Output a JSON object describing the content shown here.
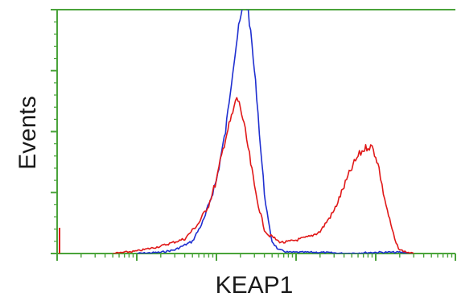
{
  "chart_data": {
    "type": "line",
    "title": "",
    "xlabel": "KEAP1",
    "ylabel": "Events",
    "x_scale": "log",
    "xlim": [
      1,
      100000
    ],
    "ylim": [
      0,
      200
    ],
    "grid": false,
    "legend": "none",
    "colors": {
      "axis": "#4aa33a",
      "blue_series": "#1f2fd0",
      "red_series": "#e01818"
    },
    "series": [
      {
        "color": "#1f2fd0",
        "x": [
          10,
          20,
          30,
          50,
          70,
          100,
          130,
          160,
          190,
          220,
          250,
          280,
          320,
          360,
          400,
          450,
          500,
          600,
          700,
          800,
          1000,
          1300,
          2000,
          4000,
          10000,
          20000,
          30000
        ],
        "y": [
          0,
          1,
          3,
          10,
          28,
          60,
          100,
          150,
          185,
          205,
          200,
          170,
          130,
          85,
          50,
          25,
          10,
          3,
          2,
          1,
          1,
          1,
          1,
          0,
          1,
          1,
          0
        ]
      },
      {
        "color": "#e01818",
        "x": [
          5,
          10,
          20,
          40,
          60,
          80,
          100,
          130,
          160,
          180,
          200,
          230,
          260,
          300,
          350,
          400,
          450,
          500,
          600,
          700,
          1000,
          1500,
          2000,
          3000,
          4000,
          5000,
          6000,
          7000,
          8000,
          9000,
          10000,
          11000,
          12000,
          14000,
          16000,
          18000,
          20000,
          25000,
          30000
        ],
        "y": [
          0,
          2,
          6,
          12,
          25,
          40,
          60,
          95,
          115,
          128,
          120,
          100,
          80,
          55,
          35,
          20,
          15,
          14,
          10,
          9,
          11,
          14,
          18,
          35,
          55,
          70,
          80,
          85,
          88,
          87,
          80,
          70,
          55,
          35,
          20,
          8,
          3,
          1,
          0
        ]
      }
    ]
  }
}
